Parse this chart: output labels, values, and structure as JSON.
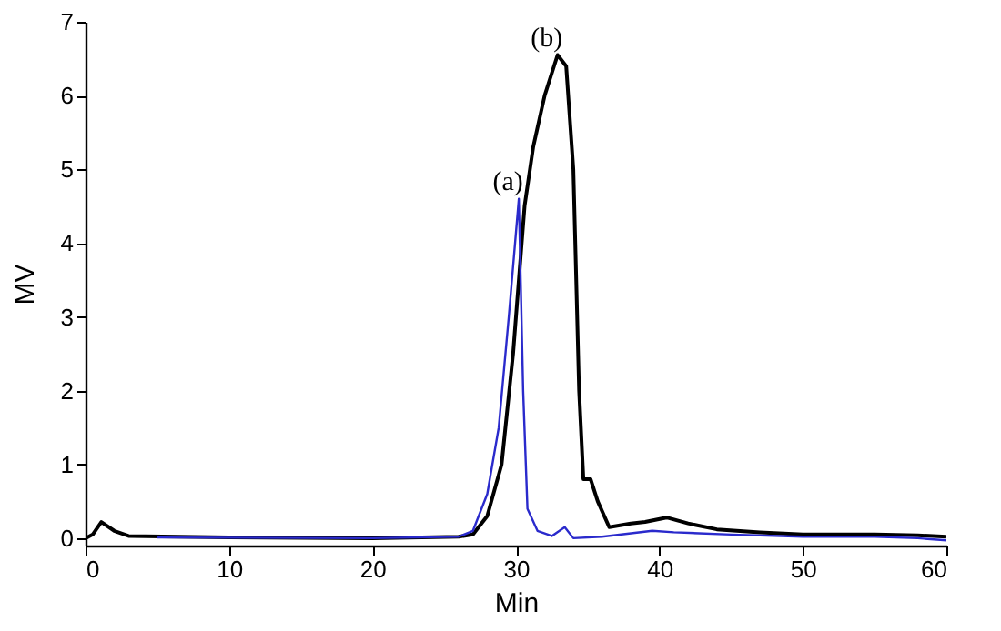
{
  "chart_data": {
    "type": "line",
    "xlabel": "Min",
    "ylabel": "MV",
    "xlim": [
      0,
      60
    ],
    "ylim": [
      -0.1,
      7
    ],
    "xticks": [
      0,
      10,
      20,
      30,
      40,
      50,
      60
    ],
    "yticks": [
      0,
      1,
      2,
      3,
      4,
      5,
      6,
      7
    ],
    "grid": false,
    "series": [
      {
        "color": "#000000",
        "x": [
          0,
          0.5,
          1.1,
          2,
          3,
          10,
          20,
          26,
          27,
          28,
          29,
          29.8,
          30.6,
          31.2,
          32,
          32.9,
          33.5,
          34,
          34.4,
          34.7,
          35.2,
          35.7,
          36.5,
          38,
          39,
          40.5,
          42,
          44,
          47,
          50,
          55,
          58,
          60
        ],
        "values": [
          0,
          0.05,
          0.22,
          0.1,
          0.03,
          0.01,
          0,
          0.02,
          0.05,
          0.3,
          1,
          2.5,
          4.5,
          5.3,
          6,
          6.55,
          6.4,
          5,
          2,
          0.8,
          0.8,
          0.5,
          0.15,
          0.2,
          0.22,
          0.28,
          0.2,
          0.12,
          0.08,
          0.05,
          0.05,
          0.04,
          0.02
        ]
      },
      {
        "color": "#2a2acc",
        "x": [
          5,
          20,
          26,
          27,
          28,
          28.8,
          29.5,
          30.2,
          30.5,
          30.8,
          31.5,
          32.5,
          33.4,
          34,
          36,
          39.5,
          41,
          45,
          50,
          55,
          58,
          60
        ],
        "values": [
          0.01,
          0,
          0.02,
          0.1,
          0.6,
          1.5,
          3,
          4.6,
          2,
          0.4,
          0.1,
          0.03,
          0.15,
          0,
          0.02,
          0.1,
          0.08,
          0.05,
          0.02,
          0.02,
          0,
          -0.03
        ]
      }
    ],
    "annotations": [
      {
        "text": "(a)",
        "x": 30.2,
        "y": 4.6
      },
      {
        "text": "(b)",
        "x": 32.9,
        "y": 6.55
      }
    ]
  }
}
